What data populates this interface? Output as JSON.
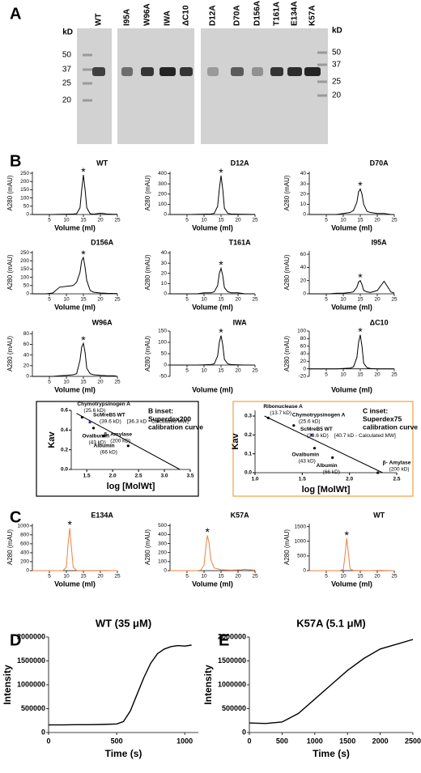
{
  "panel_labels": [
    "A",
    "B",
    "C",
    "D",
    "E"
  ],
  "gel": {
    "unit_left": "kD",
    "unit_right": "kD",
    "markers_left": [
      50,
      37,
      25,
      20
    ],
    "markers_right": [
      50,
      37,
      25,
      20
    ],
    "lanes": [
      "WT",
      "I95A",
      "W96A",
      "IWA",
      "ΔC10",
      "D12A",
      "D70A",
      "D156A",
      "T161A",
      "E134A",
      "K57A"
    ]
  },
  "chart_data": [
    {
      "type": "line",
      "title": "WT",
      "xlabel": "Volume (ml)",
      "ylabel": "A280 (mAU)",
      "peak_marker": "*",
      "x": [
        0,
        2,
        4,
        6,
        8,
        10,
        12,
        13,
        14,
        14.5,
        15,
        15.5,
        16,
        17,
        18,
        20,
        22,
        24,
        25
      ],
      "xlim": [
        0,
        25
      ],
      "xticks": [
        5,
        10,
        15,
        20,
        25
      ],
      "ylim": [
        0,
        260
      ],
      "yticks": [
        0,
        50,
        100,
        150,
        200,
        250
      ],
      "series": [
        {
          "color": "#000000",
          "values": [
            0,
            0,
            0,
            0,
            1,
            2,
            3,
            5,
            40,
            150,
            240,
            150,
            40,
            5,
            2,
            8,
            3,
            1,
            1
          ]
        }
      ]
    },
    {
      "type": "line",
      "title": "D12A",
      "xlabel": "Volume (ml)",
      "ylabel": "A280 (mAU)",
      "peak_marker": "*",
      "x": [
        0,
        2,
        4,
        6,
        8,
        10,
        12,
        13,
        14,
        14.5,
        15,
        15.5,
        16,
        17,
        18,
        20,
        22,
        24,
        25
      ],
      "xlim": [
        0,
        25
      ],
      "xticks": [
        5,
        10,
        15,
        20,
        25
      ],
      "ylim": [
        0,
        420
      ],
      "yticks": [
        0,
        100,
        200,
        300,
        400
      ],
      "series": [
        {
          "color": "#000000",
          "values": [
            0,
            0,
            0,
            0,
            2,
            3,
            5,
            10,
            80,
            250,
            380,
            250,
            60,
            10,
            5,
            3,
            2,
            1,
            1
          ]
        }
      ]
    },
    {
      "type": "line",
      "title": "D70A",
      "xlabel": "Volume (ml)",
      "ylabel": "A280 (mAU)",
      "peak_marker": "*",
      "x": [
        0,
        2,
        4,
        6,
        8,
        10,
        12,
        13,
        14,
        14.5,
        15,
        15.5,
        16,
        17,
        18,
        20,
        22,
        24,
        25
      ],
      "xlim": [
        0,
        25
      ],
      "xticks": [
        5,
        10,
        15,
        20,
        25
      ],
      "ylim": [
        0,
        42
      ],
      "yticks": [
        0,
        10,
        20,
        30,
        40
      ],
      "series": [
        {
          "color": "#000000",
          "values": [
            0,
            0,
            0,
            0,
            0,
            1,
            2,
            4,
            12,
            22,
            25,
            20,
            10,
            3,
            2,
            1,
            1,
            0,
            0
          ]
        }
      ]
    },
    {
      "type": "line",
      "title": "D156A",
      "xlabel": "Volume (ml)",
      "ylabel": "A280 (mAU)",
      "peak_marker": "*",
      "x": [
        0,
        2,
        4,
        6,
        8,
        10,
        12,
        13,
        14,
        14.5,
        15,
        15.5,
        16,
        17,
        18,
        20,
        22,
        24,
        25
      ],
      "xlim": [
        0,
        25
      ],
      "xticks": [
        5,
        10,
        15,
        20,
        25
      ],
      "ylim": [
        0,
        260
      ],
      "yticks": [
        0,
        50,
        100,
        150,
        200,
        250
      ],
      "series": [
        {
          "color": "#000000",
          "values": [
            0,
            0,
            0,
            5,
            40,
            45,
            50,
            70,
            130,
            200,
            220,
            160,
            80,
            20,
            10,
            5,
            3,
            2,
            1
          ]
        }
      ]
    },
    {
      "type": "line",
      "title": "T161A",
      "xlabel": "Volume (ml)",
      "ylabel": "A280 (mAU)",
      "peak_marker": "*",
      "x": [
        0,
        2,
        4,
        6,
        8,
        10,
        12,
        13,
        14,
        14.5,
        15,
        15.5,
        16,
        17,
        18,
        20,
        22,
        24,
        25
      ],
      "xlim": [
        0,
        25
      ],
      "xticks": [
        5,
        10,
        15,
        20,
        25
      ],
      "ylim": [
        0,
        42
      ],
      "yticks": [
        0,
        10,
        20,
        30,
        40
      ],
      "series": [
        {
          "color": "#000000",
          "values": [
            0,
            0,
            0,
            0,
            0,
            1,
            1,
            2,
            8,
            20,
            25,
            18,
            6,
            2,
            1,
            1,
            0,
            0,
            0
          ]
        }
      ]
    },
    {
      "type": "line",
      "title": "I95A",
      "xlabel": "Volume (ml)",
      "ylabel": "A280 (mAU)",
      "peak_marker": "*",
      "x": [
        0,
        2,
        4,
        6,
        8,
        10,
        12,
        13,
        14,
        14.5,
        15,
        15.5,
        16,
        17,
        18,
        20,
        22,
        24,
        25
      ],
      "xlim": [
        0,
        25
      ],
      "xticks": [
        5,
        10,
        15,
        20,
        25
      ],
      "ylim": [
        0,
        65
      ],
      "yticks": [
        0,
        20,
        40,
        60
      ],
      "series": [
        {
          "color": "#000000",
          "values": [
            0,
            0,
            0,
            0,
            1,
            1,
            2,
            3,
            10,
            18,
            20,
            14,
            5,
            3,
            2,
            5,
            19,
            3,
            1
          ]
        }
      ]
    },
    {
      "type": "line",
      "title": "W96A",
      "xlabel": "Volume (ml)",
      "ylabel": "A280 (mAU)",
      "peak_marker": "*",
      "x": [
        0,
        2,
        4,
        6,
        8,
        10,
        12,
        13,
        14,
        14.5,
        15,
        15.5,
        16,
        17,
        18,
        20,
        22,
        24,
        25
      ],
      "xlim": [
        0,
        25
      ],
      "xticks": [
        5,
        10,
        15,
        20,
        25
      ],
      "ylim": [
        0,
        85
      ],
      "yticks": [
        0,
        20,
        40,
        60,
        80
      ],
      "series": [
        {
          "color": "#000000",
          "values": [
            0,
            0,
            0,
            0,
            1,
            2,
            3,
            5,
            30,
            55,
            62,
            45,
            15,
            5,
            3,
            2,
            1,
            1,
            0
          ]
        }
      ]
    },
    {
      "type": "line",
      "title": "IWA",
      "xlabel": "Volume (ml)",
      "ylabel": "A280 (mAU)",
      "peak_marker": "*",
      "x": [
        0,
        2,
        4,
        6,
        8,
        10,
        12,
        13,
        14,
        14.5,
        15,
        15.5,
        16,
        17,
        18,
        20,
        22,
        24,
        25
      ],
      "xlim": [
        0,
        25
      ],
      "xticks": [
        5,
        10,
        15,
        20,
        25
      ],
      "ylim": [
        -50,
        150
      ],
      "yticks": [
        -50,
        0,
        50,
        100,
        150
      ],
      "series": [
        {
          "color": "#000000",
          "values": [
            0,
            0,
            0,
            0,
            0,
            1,
            2,
            5,
            40,
            100,
            130,
            90,
            25,
            5,
            2,
            1,
            0,
            0,
            0
          ]
        }
      ]
    },
    {
      "type": "line",
      "title": "ΔC10",
      "xlabel": "Volume (ml)",
      "ylabel": "A280 (mAU)",
      "peak_marker": "*",
      "x": [
        0,
        2,
        4,
        6,
        8,
        10,
        12,
        13,
        14,
        14.5,
        15,
        15.5,
        16,
        17,
        18,
        20,
        22,
        24,
        25
      ],
      "xlim": [
        0,
        25
      ],
      "xticks": [
        5,
        10,
        15,
        20,
        25
      ],
      "ylim": [
        -20,
        100
      ],
      "yticks": [
        -20,
        0,
        20,
        40,
        60,
        80,
        100
      ],
      "series": [
        {
          "color": "#000000",
          "values": [
            0,
            0,
            0,
            0,
            0,
            1,
            2,
            5,
            30,
            70,
            90,
            60,
            15,
            3,
            1,
            0,
            0,
            0,
            0
          ]
        }
      ]
    },
    {
      "type": "scatter",
      "title": [
        "B inset:",
        "Superdex200",
        "calibration curve"
      ],
      "title_color": "#000000",
      "frame_color": "#000000",
      "xlabel": "log [MolWt]",
      "ylabel": "Kav",
      "xlim": [
        1.2,
        3.5
      ],
      "xticks": [
        1.5,
        {
          "value": 2,
          "label": "2.0"
        },
        2.5,
        {
          "value": 3,
          "label": "3.0"
        },
        3.5
      ],
      "ylim": [
        0,
        0.6
      ],
      "yticks": [
        {
          "value": 0,
          "label": "0.0"
        },
        0.2,
        0.4,
        0.6
      ],
      "points": [
        {
          "label": "Chymotrypsinogen A",
          "sublabel": "(25.6 kD)",
          "x": 1.41,
          "y": 0.53,
          "color": "#000000"
        },
        {
          "label": "ScMreB5 WT",
          "sublabel": "(39.6 kD)",
          "note": "[36.3 kD - Calculated MW]",
          "x": 1.56,
          "y": 0.48,
          "color": "#2828c8"
        },
        {
          "label": "Ovalbumin",
          "sublabel": "(43 kD)",
          "x": 1.63,
          "y": 0.42,
          "color": "#000000"
        },
        {
          "label": "Albumin",
          "sublabel": "(66 kD)",
          "x": 1.82,
          "y": 0.34,
          "color": "#000000"
        },
        {
          "label": "β- Amylase",
          "sublabel": "(200 kD)",
          "x": 2.3,
          "y": 0.24,
          "color": "#000000"
        }
      ],
      "fit": {
        "x": [
          1.3,
          3.3
        ],
        "y": [
          0.57,
          0
        ]
      }
    },
    {
      "type": "scatter",
      "title": [
        "C inset:",
        "Superdex75",
        "calibration curve"
      ],
      "title_color": "#e8822e",
      "frame_color": "#f0a040",
      "xlabel": "log [MolWt]",
      "ylabel": "Kav",
      "xlim": [
        1.0,
        2.5
      ],
      "xticks": [
        {
          "value": 1,
          "label": "1.0"
        },
        1.5,
        {
          "value": 2,
          "label": "2.0"
        },
        2.5
      ],
      "ylim": [
        0,
        0.33
      ],
      "yticks": [
        {
          "value": 0,
          "label": "0.0"
        },
        0.1,
        0.2,
        0.3
      ],
      "points": [
        {
          "label": "Ribonuclease A",
          "sublabel": "(13.7 kD)",
          "x": 1.14,
          "y": 0.29,
          "color": "#000000"
        },
        {
          "label": "Chymotrypsinogen A",
          "sublabel": "(25.6 kD)",
          "x": 1.41,
          "y": 0.25,
          "color": "#000000"
        },
        {
          "label": "ScMreB5 WT",
          "sublabel": "(39.6 kD)",
          "note": "[40.7 kD - Calculated MW]",
          "x": 1.6,
          "y": 0.2,
          "color": "#2828c8"
        },
        {
          "label": "Ovalbumin",
          "sublabel": "(43 kD)",
          "x": 1.63,
          "y": 0.13,
          "color": "#000000"
        },
        {
          "label": "Albumin",
          "sublabel": "(66 kD)",
          "x": 1.82,
          "y": 0.08,
          "color": "#000000"
        },
        {
          "label": "β- Amylase",
          "sublabel": "(200 kD)",
          "x": 2.3,
          "y": 0,
          "color": "#000000"
        }
      ],
      "fit": {
        "x": [
          1.1,
          2.35
        ],
        "y": [
          0.3,
          0
        ]
      }
    },
    {
      "type": "line",
      "title": "E134A",
      "xlabel": "Volume (ml)",
      "ylabel": "A280 (mAU)",
      "peak_marker": "*",
      "x": [
        0,
        4,
        8,
        9,
        10,
        10.5,
        11,
        11.5,
        12,
        13,
        15,
        18,
        21,
        22,
        23,
        25
      ],
      "xlim": [
        0,
        25
      ],
      "xticks": [
        5,
        10,
        15,
        20,
        25
      ],
      "ylim": [
        0,
        1050
      ],
      "yticks": [
        0,
        200,
        400,
        600,
        800,
        1000
      ],
      "series": [
        {
          "color": "#f08040",
          "values": [
            0,
            0,
            0,
            2,
            80,
            600,
            950,
            500,
            80,
            5,
            2,
            1,
            1,
            1,
            0,
            0
          ]
        }
      ]
    },
    {
      "type": "line",
      "title": "K57A",
      "xlabel": "Volume (ml)",
      "ylabel": "A280 (mAU)",
      "peak_marker": "*",
      "x": [
        0,
        4,
        8,
        9,
        10,
        10.5,
        11,
        11.5,
        12,
        13,
        15,
        18,
        21,
        22,
        23,
        25
      ],
      "xlim": [
        0,
        25
      ],
      "xticks": [
        5,
        10,
        15,
        20,
        25
      ],
      "ylim": [
        0,
        520
      ],
      "yticks": [
        0,
        100,
        200,
        300,
        400,
        500
      ],
      "series": [
        {
          "color": "#f08040",
          "values": [
            0,
            0,
            0,
            5,
            60,
            250,
            390,
            300,
            120,
            30,
            10,
            5,
            10,
            15,
            10,
            5
          ]
        }
      ]
    },
    {
      "type": "line",
      "title": "WT",
      "xlabel": "Volume (ml)",
      "ylabel": "A280 (mAU)",
      "peak_marker": "*",
      "x": [
        0,
        4,
        8,
        9,
        10,
        10.5,
        11,
        11.5,
        12,
        13,
        15,
        18,
        21,
        22,
        23,
        25
      ],
      "xlim": [
        0,
        25
      ],
      "xticks": [
        5,
        10,
        15,
        20,
        25
      ],
      "ylim": [
        0,
        1600
      ],
      "yticks": [
        0,
        500,
        1000,
        1500
      ],
      "series": [
        {
          "color": "#f08040",
          "values": [
            0,
            0,
            0,
            2,
            40,
            500,
            1100,
            600,
            60,
            5,
            2,
            1,
            10,
            5,
            2,
            0
          ]
        }
      ]
    },
    {
      "type": "line",
      "title": "WT (35 μM)",
      "xlabel": "Time (s)",
      "ylabel": "Intensity",
      "x": [
        0,
        100,
        200,
        300,
        400,
        500,
        550,
        600,
        650,
        700,
        750,
        800,
        850,
        900,
        950,
        1000,
        1050
      ],
      "xlim": [
        0,
        1100
      ],
      "xticks": [
        0,
        500,
        1000
      ],
      "ylim": [
        0,
        2000000
      ],
      "yticks": [
        0,
        500000,
        1000000,
        1500000,
        2000000
      ],
      "series": [
        {
          "color": "#000000",
          "values": [
            160000,
            160000,
            165000,
            165000,
            170000,
            180000,
            230000,
            450000,
            800000,
            1150000,
            1450000,
            1650000,
            1750000,
            1800000,
            1820000,
            1810000,
            1830000
          ]
        }
      ]
    },
    {
      "type": "line",
      "title": "K57A (5.1 μM)",
      "xlabel": "Time (s)",
      "ylabel": "Intensity",
      "x": [
        0,
        250,
        500,
        750,
        1000,
        1250,
        1500,
        1750,
        2000,
        2250,
        2500
      ],
      "xlim": [
        0,
        2500
      ],
      "xticks": [
        0,
        500,
        1000,
        1500,
        2000,
        2500
      ],
      "ylim": [
        0,
        2000000
      ],
      "yticks": [
        0,
        500000,
        1000000,
        1500000,
        2000000
      ],
      "series": [
        {
          "color": "#000000",
          "values": [
            200000,
            190000,
            220000,
            400000,
            700000,
            1000000,
            1300000,
            1550000,
            1750000,
            1850000,
            1950000
          ]
        }
      ]
    }
  ]
}
